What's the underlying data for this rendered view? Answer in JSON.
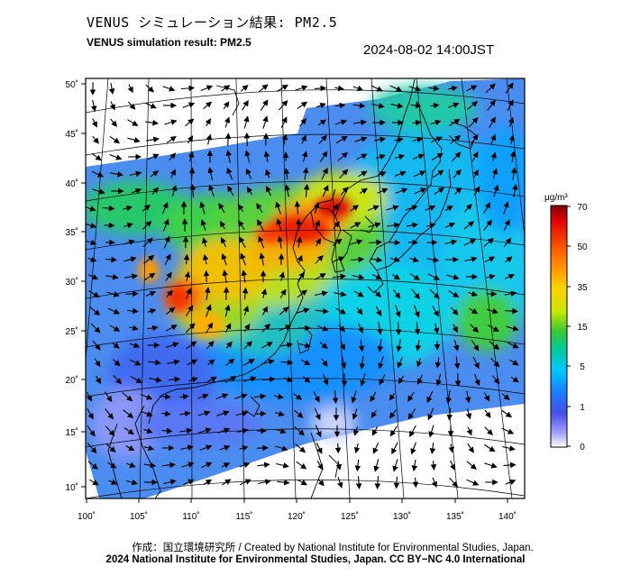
{
  "header": {
    "title_jp": "VENUS シミュレーション結果: PM2.5",
    "title_en": "VENUS simulation result: PM2.5",
    "timestamp": "2024-08-02 14:00JST"
  },
  "map": {
    "lat_ticks": [
      "50˚",
      "45˚",
      "40˚",
      "35˚",
      "30˚",
      "25˚",
      "20˚",
      "15˚",
      "10˚"
    ],
    "lon_ticks": [
      "100˚",
      "105˚",
      "110˚",
      "115˚",
      "120˚",
      "125˚",
      "130˚",
      "135˚",
      "140˚"
    ],
    "field": "PM2.5 concentration with wind vectors",
    "lat_range": [
      9,
      51
    ],
    "lon_range": [
      100,
      141
    ]
  },
  "colorbar": {
    "unit": "μg/m³",
    "labels": [
      "70",
      "50",
      "35",
      "15",
      "5",
      "1",
      "0"
    ],
    "stops": [
      "#7a0010",
      "#e00000",
      "#ff6a00",
      "#ffd200",
      "#c8e600",
      "#37c837",
      "#00c8a0",
      "#00c8ff",
      "#1e78ff",
      "#4650e6",
      "#a0a0ff",
      "#ffffff"
    ]
  },
  "footer": {
    "credit_line1": "作成：国立環境研究所 / Created by National Institute for Environmental Studies, Japan.",
    "credit_line2": "2024 National Institute for Environmental Studies, Japan. CC BY−NC 4.0 International"
  }
}
